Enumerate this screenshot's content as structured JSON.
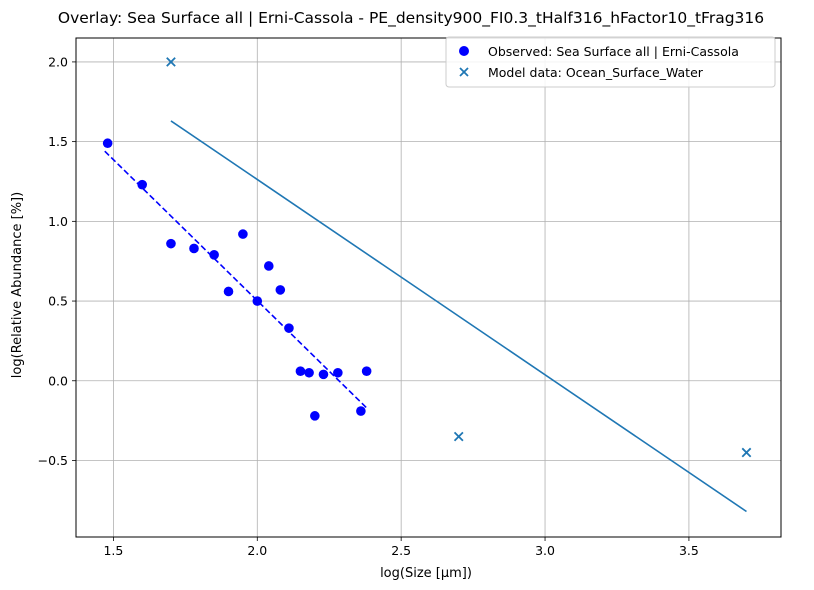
{
  "chart_data": {
    "type": "scatter",
    "title": "Overlay: Sea Surface all | Erni-Cassola - PE_density900_FI0.3_tHalf316_hFactor10_tFrag316",
    "xlabel": "log(Size [μm])",
    "ylabel": "log(Relative Abundance [%])",
    "xlim": [
      1.37,
      3.82
    ],
    "ylim": [
      -0.98,
      2.15
    ],
    "x_ticks": [
      1.5,
      2.0,
      2.5,
      3.0,
      3.5
    ],
    "x_tick_labels": [
      "1.5",
      "2.0",
      "2.5",
      "3.0",
      "3.5"
    ],
    "y_ticks": [
      -0.5,
      0.0,
      0.5,
      1.0,
      1.5,
      2.0
    ],
    "y_tick_labels": [
      "−0.5",
      "0.0",
      "0.5",
      "1.0",
      "1.5",
      "2.0"
    ],
    "grid": true,
    "legend_position": "top-right",
    "colors": {
      "observed": "#0000ff",
      "model": "#1f77b4",
      "grid": "#b0b0b0"
    },
    "series": [
      {
        "name": "Observed: Sea Surface all | Erni-Cassola",
        "kind": "scatter",
        "marker": "circle",
        "color": "#0000ff",
        "points": [
          [
            1.48,
            1.49
          ],
          [
            1.6,
            1.23
          ],
          [
            1.7,
            0.86
          ],
          [
            1.78,
            0.83
          ],
          [
            1.85,
            0.79
          ],
          [
            1.9,
            0.56
          ],
          [
            1.95,
            0.92
          ],
          [
            2.0,
            0.5
          ],
          [
            2.04,
            0.72
          ],
          [
            2.08,
            0.57
          ],
          [
            2.11,
            0.33
          ],
          [
            2.15,
            0.06
          ],
          [
            2.18,
            0.05
          ],
          [
            2.2,
            -0.22
          ],
          [
            2.23,
            0.04
          ],
          [
            2.28,
            0.05
          ],
          [
            2.36,
            -0.19
          ],
          [
            2.38,
            0.06
          ]
        ]
      },
      {
        "name": "",
        "kind": "fit-line",
        "style": "dashed",
        "color": "#0000ff",
        "points": [
          [
            1.47,
            1.44
          ],
          [
            2.38,
            -0.17
          ]
        ]
      },
      {
        "name": "Model data: Ocean_Surface_Water",
        "kind": "scatter",
        "marker": "x",
        "color": "#1f77b4",
        "points": [
          [
            1.7,
            2.0
          ],
          [
            2.7,
            -0.35
          ],
          [
            3.7,
            -0.45
          ]
        ]
      },
      {
        "name": "",
        "kind": "line",
        "style": "solid",
        "color": "#1f77b4",
        "points": [
          [
            1.7,
            1.63
          ],
          [
            3.7,
            -0.82
          ]
        ]
      }
    ]
  }
}
